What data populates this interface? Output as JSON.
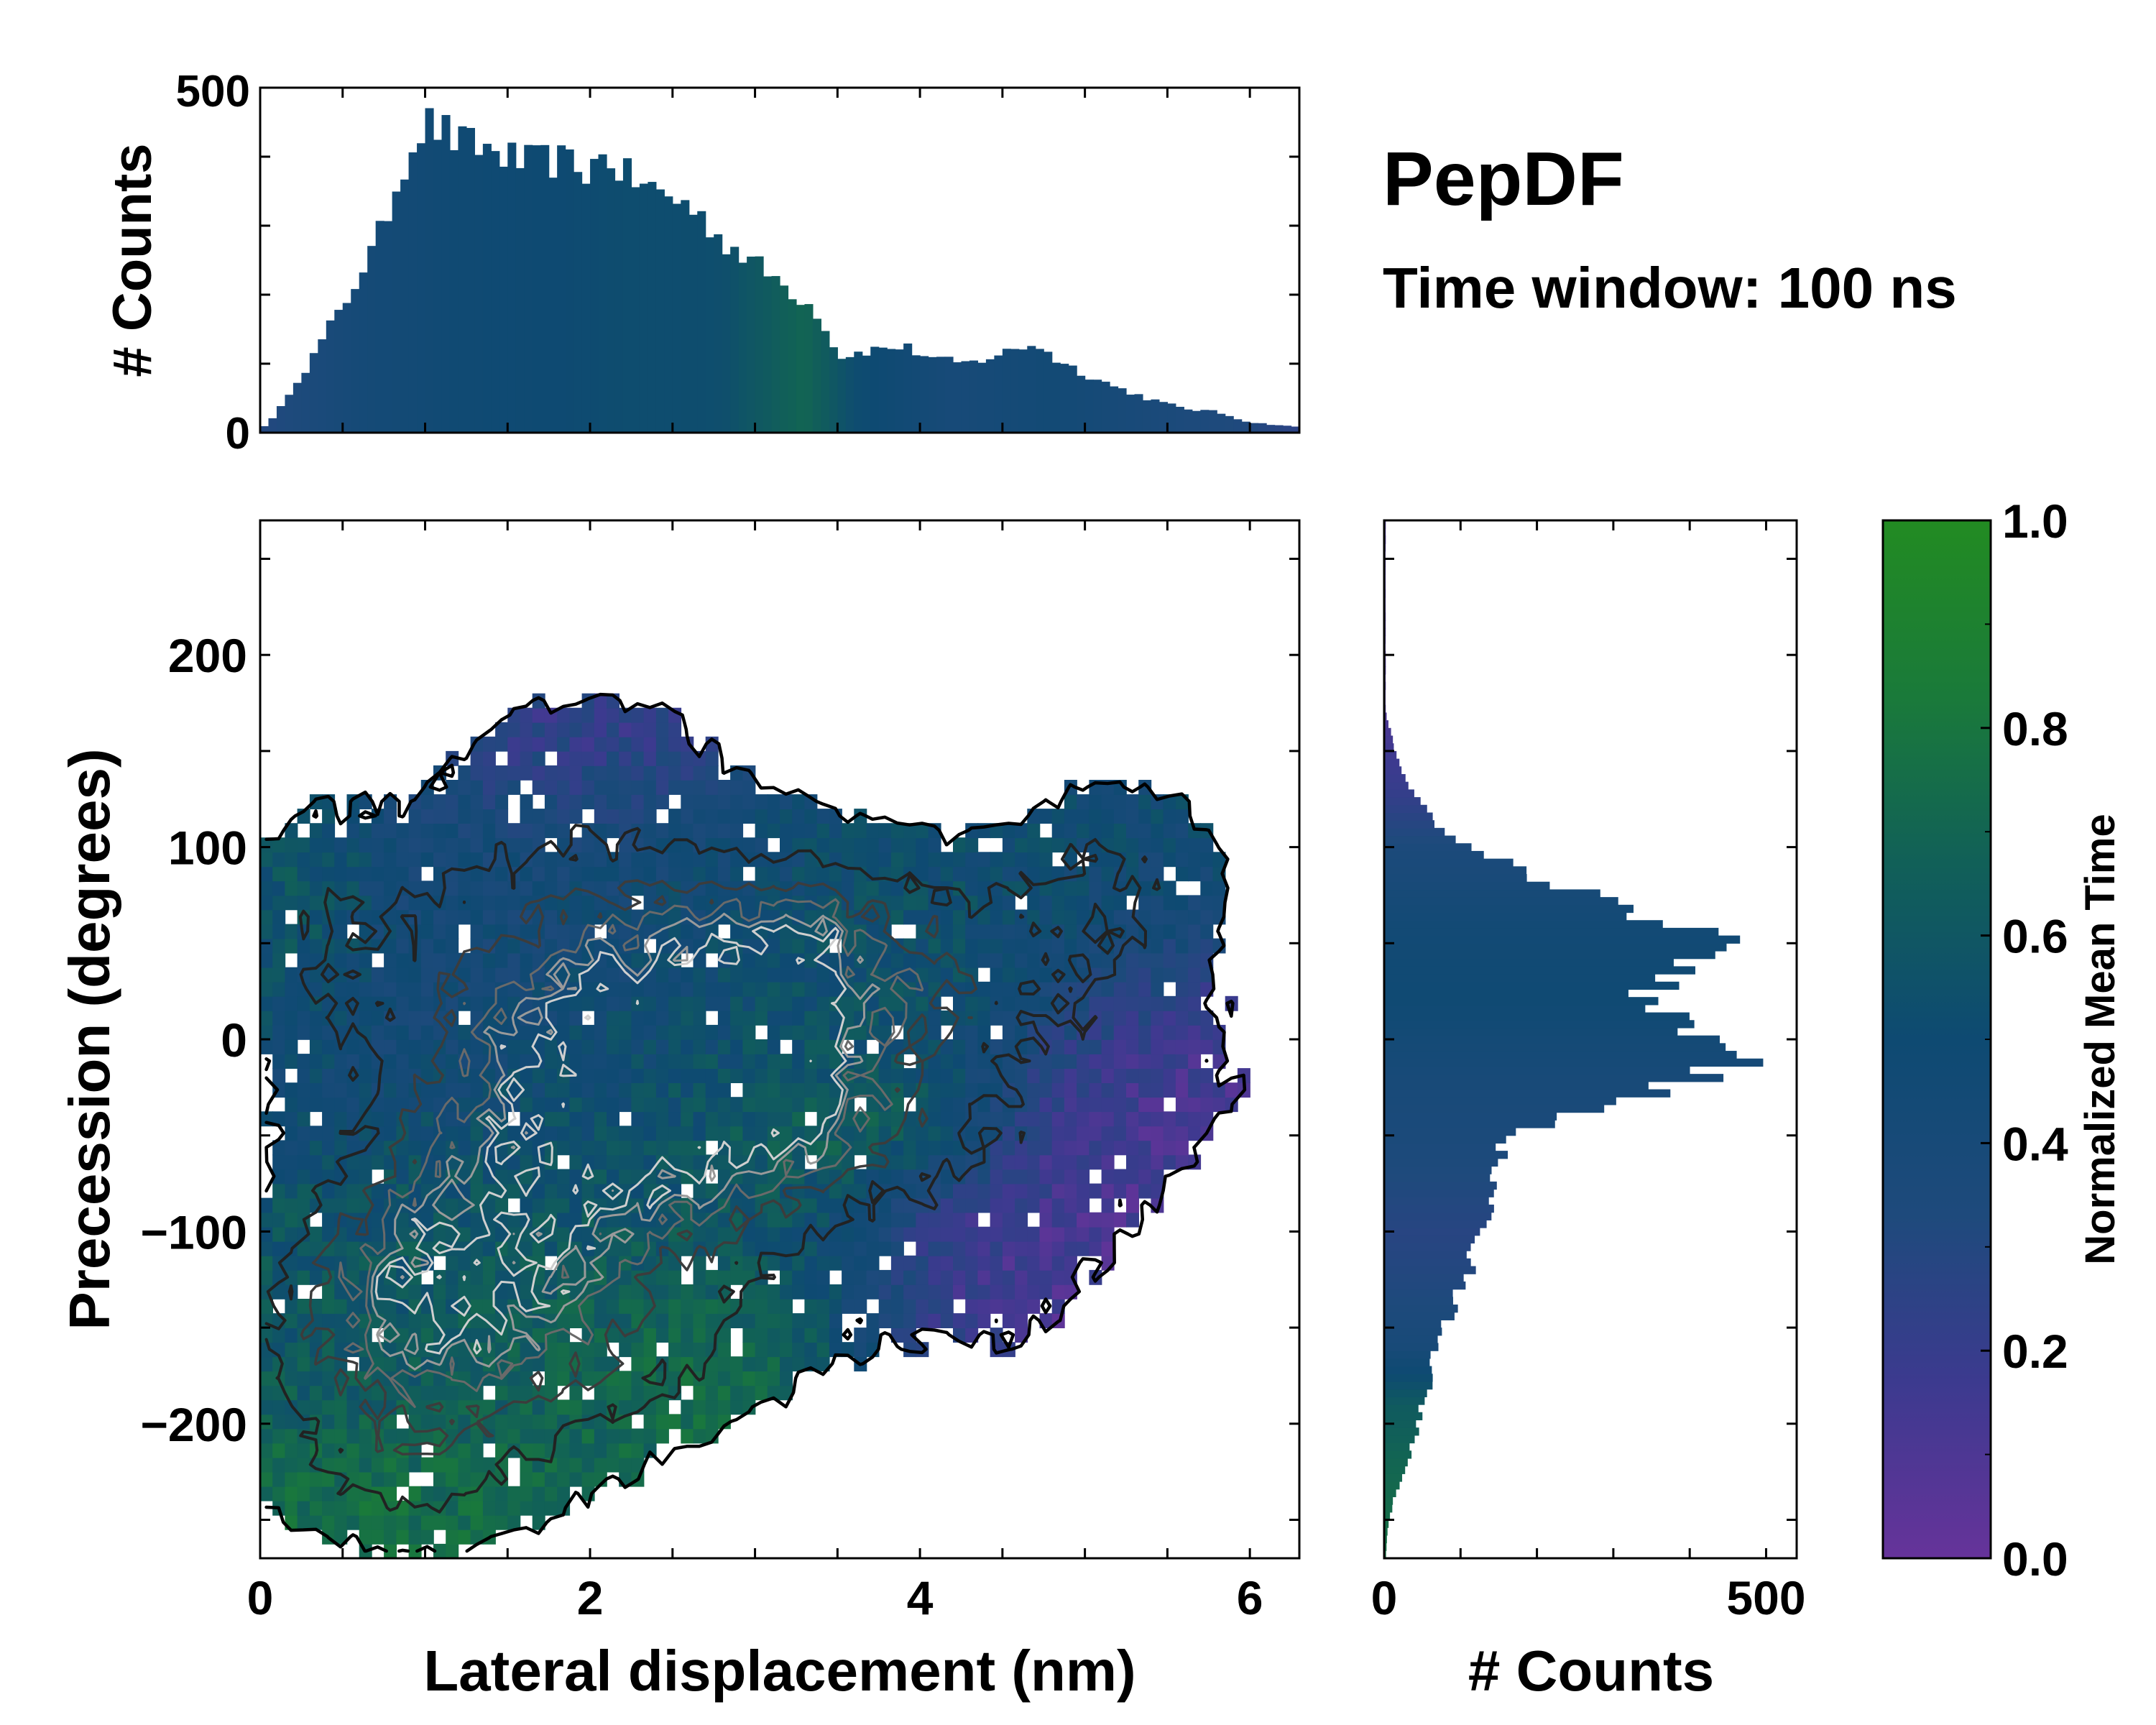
{
  "chart_data": [
    {
      "panel": "top-marginal",
      "type": "bar",
      "ylabel": "# Counts",
      "xlim": [
        0,
        6.3
      ],
      "ylim": [
        0,
        500
      ],
      "yticks": [
        "0",
        "500"
      ],
      "bin_width": 0.05,
      "profile_x": [
        0,
        0.1,
        0.2,
        0.3,
        0.4,
        0.5,
        0.6,
        0.7,
        0.8,
        0.9,
        1.0,
        1.1,
        1.2,
        1.4,
        1.6,
        1.8,
        2.0,
        2.1,
        2.2,
        2.4,
        2.6,
        2.8,
        3.0,
        3.2,
        3.4,
        3.5,
        3.7,
        3.9,
        4.1,
        4.3,
        4.5,
        4.7,
        4.8,
        5.0,
        5.2,
        5.4,
        5.6,
        5.8,
        6.0,
        6.3
      ],
      "profile_y": [
        5,
        25,
        70,
        100,
        145,
        180,
        230,
        270,
        340,
        410,
        450,
        440,
        420,
        410,
        390,
        395,
        380,
        405,
        375,
        350,
        330,
        280,
        245,
        210,
        170,
        110,
        120,
        125,
        105,
        100,
        115,
        130,
        110,
        85,
        65,
        48,
        35,
        30,
        15,
        8
      ],
      "color_time": [
        0.3,
        0.42,
        0.48,
        0.5,
        0.52,
        0.52,
        0.53,
        0.6,
        0.7,
        0.52,
        0.4,
        0.45,
        0.4,
        0.35,
        0.32,
        0.25
      ],
      "color_time_x": [
        0,
        0.6,
        1.2,
        1.8,
        2.2,
        2.5,
        2.8,
        3.0,
        3.3,
        3.6,
        4.2,
        4.8,
        5.2,
        5.6,
        6.0,
        6.3
      ]
    },
    {
      "panel": "main-2d-histogram",
      "type": "heatmap",
      "title": "PepDF",
      "subtitle": "Time window: 100 ns",
      "xlabel": "Lateral displacement (nm)",
      "ylabel": "Precession (degrees)",
      "xlim": [
        0,
        6.3
      ],
      "ylim": [
        -270,
        270
      ],
      "xticks": [
        "0",
        "2",
        "4",
        "6"
      ],
      "yticks": [
        "200",
        "100",
        "0",
        "−100",
        "−200"
      ],
      "blobs": [
        {
          "x": 1.8,
          "y": 30,
          "sx": 1.0,
          "sy": 60,
          "w": 1.0,
          "t": 0.4
        },
        {
          "x": 1.2,
          "y": -140,
          "sx": 0.7,
          "sy": 55,
          "w": 0.85,
          "t": 0.6
        },
        {
          "x": 2.6,
          "y": -40,
          "sx": 0.9,
          "sy": 70,
          "w": 0.8,
          "t": 0.62
        },
        {
          "x": 3.7,
          "y": 30,
          "sx": 0.8,
          "sy": 40,
          "w": 0.55,
          "t": 0.55
        },
        {
          "x": 5.3,
          "y": -20,
          "sx": 0.55,
          "sy": 45,
          "w": 0.35,
          "t": 0.12
        },
        {
          "x": 4.4,
          "y": -100,
          "sx": 0.6,
          "sy": 50,
          "w": 0.35,
          "t": 0.08
        },
        {
          "x": 5.2,
          "y": 80,
          "sx": 0.45,
          "sy": 35,
          "w": 0.35,
          "t": 0.48
        },
        {
          "x": 2.0,
          "y": 150,
          "sx": 0.5,
          "sy": 25,
          "w": 0.3,
          "t": 0.15
        },
        {
          "x": 3.6,
          "y": -45,
          "sx": 0.5,
          "sy": 20,
          "w": 0.4,
          "t": 0.85
        },
        {
          "x": 2.2,
          "y": -170,
          "sx": 0.7,
          "sy": 30,
          "w": 0.4,
          "t": 0.8
        },
        {
          "x": 1.0,
          "y": -230,
          "sx": 0.6,
          "sy": 25,
          "w": 0.4,
          "t": 0.8
        },
        {
          "x": 0.3,
          "y": 60,
          "sx": 0.3,
          "sy": 40,
          "w": 0.3,
          "t": 0.7
        }
      ]
    },
    {
      "panel": "right-marginal",
      "type": "bar",
      "xlabel": "# Counts",
      "xlim": [
        0,
        540
      ],
      "ylim": [
        -270,
        270
      ],
      "xticks": [
        "0",
        "500"
      ],
      "bin_width": 4,
      "profile_y": [
        170,
        150,
        130,
        110,
        100,
        90,
        80,
        70,
        60,
        50,
        45,
        40,
        30,
        20,
        10,
        0,
        -10,
        -20,
        -30,
        -40,
        -50,
        -60,
        -80,
        -100,
        -120,
        -150,
        -170,
        -180,
        -190,
        -200,
        -220,
        -240,
        -255,
        -270
      ],
      "profile_x": [
        2,
        15,
        35,
        70,
        120,
        170,
        230,
        300,
        380,
        440,
        460,
        400,
        360,
        330,
        380,
        450,
        480,
        420,
        330,
        240,
        170,
        150,
        140,
        130,
        110,
        80,
        60,
        60,
        50,
        45,
        30,
        12,
        5,
        2
      ],
      "color_time": [
        0.1,
        0.2,
        0.35,
        0.45,
        0.48,
        0.4,
        0.35,
        0.28,
        0.32,
        0.4,
        0.62,
        0.7,
        0.75,
        0.78
      ],
      "color_time_y": [
        170,
        130,
        100,
        60,
        20,
        -20,
        -60,
        -100,
        -130,
        -160,
        -190,
        -220,
        -250,
        -270
      ]
    },
    {
      "panel": "colorbar",
      "type": "colorbar",
      "label": "Normalized Mean Time",
      "range": [
        0.0,
        1.0
      ],
      "ticks": [
        "0.0",
        "0.2",
        "0.4",
        "0.6",
        "0.8",
        "1.0"
      ],
      "colormap_stops": [
        "#66339a",
        "#3c3a8f",
        "#1e4a7c",
        "#0e4a72",
        "#116058",
        "#1a7a3a",
        "#228b22"
      ]
    }
  ]
}
